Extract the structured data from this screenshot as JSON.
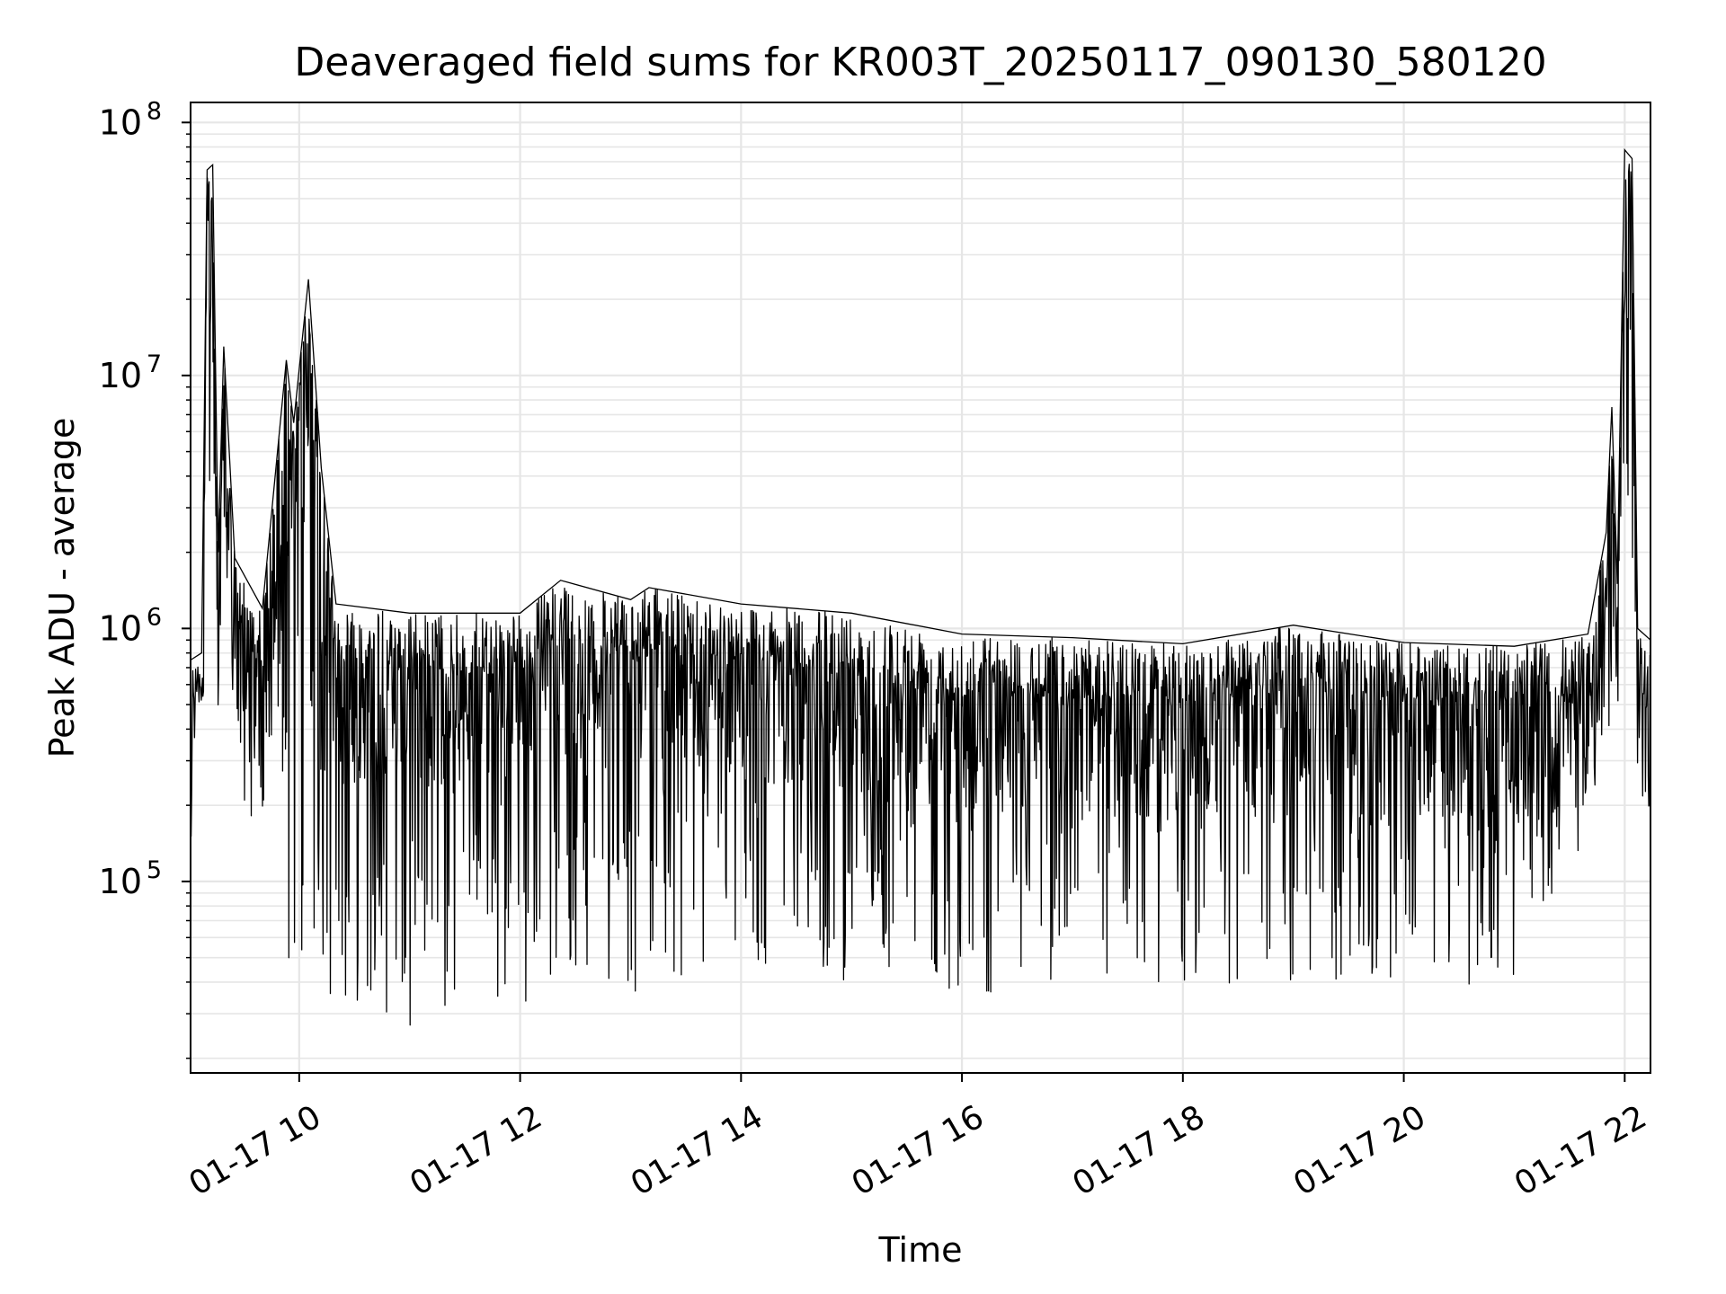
{
  "chart_data": {
    "type": "line",
    "title": "Deaveraged field sums for KR003T_20250117_090130_580120",
    "xlabel": "Time",
    "ylabel": "Peak ADU - average",
    "x_scale": "time",
    "y_scale": "log",
    "grid": true,
    "grid_minor": true,
    "line_color": "#000000",
    "grid_color": "#e6e6e6",
    "xlim": [
      "2025-01-17 09:01",
      "2025-01-17 22:14"
    ],
    "ylim": [
      17500,
      120000000
    ],
    "x_ticks": [
      {
        "value": "2025-01-17 10:00",
        "label": "01-17 10"
      },
      {
        "value": "2025-01-17 12:00",
        "label": "01-17 12"
      },
      {
        "value": "2025-01-17 14:00",
        "label": "01-17 14"
      },
      {
        "value": "2025-01-17 16:00",
        "label": "01-17 16"
      },
      {
        "value": "2025-01-17 18:00",
        "label": "01-17 18"
      },
      {
        "value": "2025-01-17 20:00",
        "label": "01-17 20"
      },
      {
        "value": "2025-01-17 22:00",
        "label": "01-17 22"
      }
    ],
    "y_ticks": [
      {
        "value": 100000,
        "base": "10",
        "exp": "5"
      },
      {
        "value": 1000000,
        "base": "10",
        "exp": "6"
      },
      {
        "value": 10000000,
        "base": "10",
        "exp": "7"
      },
      {
        "value": 100000000,
        "base": "10",
        "exp": "8"
      }
    ],
    "series": [
      {
        "envelope_upper": [
          [
            "2025-01-17 09:01",
            750000
          ],
          [
            "2025-01-17 09:07",
            800000
          ],
          [
            "2025-01-17 09:10",
            65000000
          ],
          [
            "2025-01-17 09:13",
            68000000
          ],
          [
            "2025-01-17 09:16",
            2000000
          ],
          [
            "2025-01-17 09:19",
            13000000
          ],
          [
            "2025-01-17 09:25",
            1900000
          ],
          [
            "2025-01-17 09:40",
            1200000
          ],
          [
            "2025-01-17 09:53",
            11500000
          ],
          [
            "2025-01-17 09:57",
            6500000
          ],
          [
            "2025-01-17 10:05",
            24000000
          ],
          [
            "2025-01-17 10:12",
            4300000
          ],
          [
            "2025-01-17 10:20",
            1250000
          ],
          [
            "2025-01-17 11:00",
            1150000
          ],
          [
            "2025-01-17 11:30",
            1150000
          ],
          [
            "2025-01-17 12:00",
            1150000
          ],
          [
            "2025-01-17 12:22",
            1550000
          ],
          [
            "2025-01-17 13:00",
            1300000
          ],
          [
            "2025-01-17 13:10",
            1450000
          ],
          [
            "2025-01-17 14:00",
            1250000
          ],
          [
            "2025-01-17 15:00",
            1150000
          ],
          [
            "2025-01-17 16:00",
            950000
          ],
          [
            "2025-01-17 17:00",
            920000
          ],
          [
            "2025-01-17 18:00",
            870000
          ],
          [
            "2025-01-17 19:00",
            1030000
          ],
          [
            "2025-01-17 20:00",
            880000
          ],
          [
            "2025-01-17 21:00",
            850000
          ],
          [
            "2025-01-17 21:40",
            950000
          ],
          [
            "2025-01-17 21:50",
            2400000
          ],
          [
            "2025-01-17 21:53",
            7500000
          ],
          [
            "2025-01-17 21:56",
            1500000
          ],
          [
            "2025-01-17 22:00",
            78000000
          ],
          [
            "2025-01-17 22:04",
            72000000
          ],
          [
            "2025-01-17 22:07",
            1000000
          ],
          [
            "2025-01-17 22:14",
            900000
          ]
        ],
        "envelope_lower": [
          [
            "2025-01-17 09:01",
            500000
          ],
          [
            "2025-01-17 09:20",
            400000
          ],
          [
            "2025-01-17 09:30",
            200000
          ],
          [
            "2025-01-17 09:45",
            110000
          ],
          [
            "2025-01-17 09:55",
            35000
          ],
          [
            "2025-01-17 10:30",
            33000
          ],
          [
            "2025-01-17 11:00",
            27000
          ],
          [
            "2025-01-17 11:30",
            27000
          ],
          [
            "2025-01-17 12:00",
            32000
          ],
          [
            "2025-01-17 12:40",
            45000
          ],
          [
            "2025-01-17 13:00",
            35000
          ],
          [
            "2025-01-17 14:00",
            45000
          ],
          [
            "2025-01-17 15:00",
            40000
          ],
          [
            "2025-01-17 16:00",
            37000
          ],
          [
            "2025-01-17 17:00",
            34000
          ],
          [
            "2025-01-17 18:00",
            34000
          ],
          [
            "2025-01-17 19:00",
            38000
          ],
          [
            "2025-01-17 20:00",
            37000
          ],
          [
            "2025-01-17 21:00",
            40000
          ],
          [
            "2025-01-17 21:40",
            150000
          ],
          [
            "2025-01-17 21:55",
            450000
          ],
          [
            "2025-01-17 22:14",
            480000
          ]
        ]
      }
    ]
  }
}
